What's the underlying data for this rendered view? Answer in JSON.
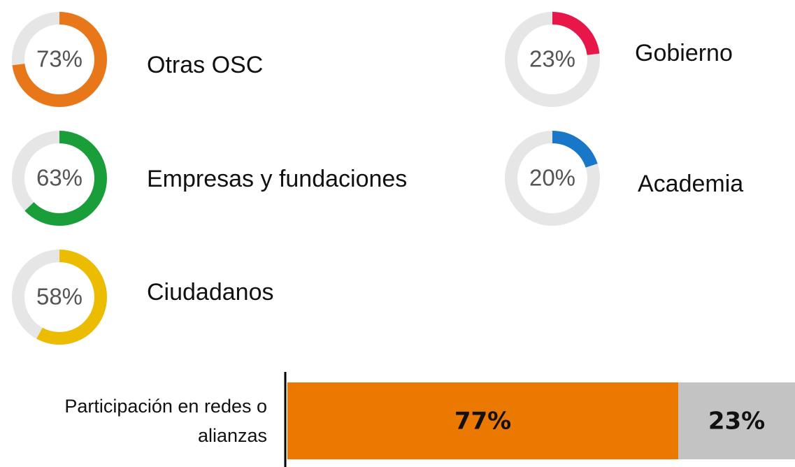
{
  "chart_data": [
    {
      "type": "donut",
      "categories": [
        "Otras OSC",
        "Empresas y fundaciones",
        "Ciudadanos",
        "Gobierno",
        "Academia"
      ],
      "values": [
        73,
        63,
        58,
        23,
        20
      ],
      "value_labels": [
        "73%",
        "63%",
        "58%",
        "23%",
        "20%"
      ],
      "colors": [
        "#e8771a",
        "#1a9e3a",
        "#ecbc00",
        "#e8174a",
        "#1877c8"
      ],
      "track_color": "#e6e6e6"
    },
    {
      "type": "stacked_bar",
      "orientation": "horizontal",
      "categories": [
        "Participación en redes o alianzas"
      ],
      "xlim": [
        0,
        100
      ],
      "series": [
        {
          "color": "#eb7800",
          "values": [
            77
          ],
          "value_labels": [
            "77%"
          ]
        },
        {
          "color": "#c3c3c3",
          "values": [
            23
          ],
          "value_labels": [
            "23%"
          ]
        }
      ]
    }
  ]
}
